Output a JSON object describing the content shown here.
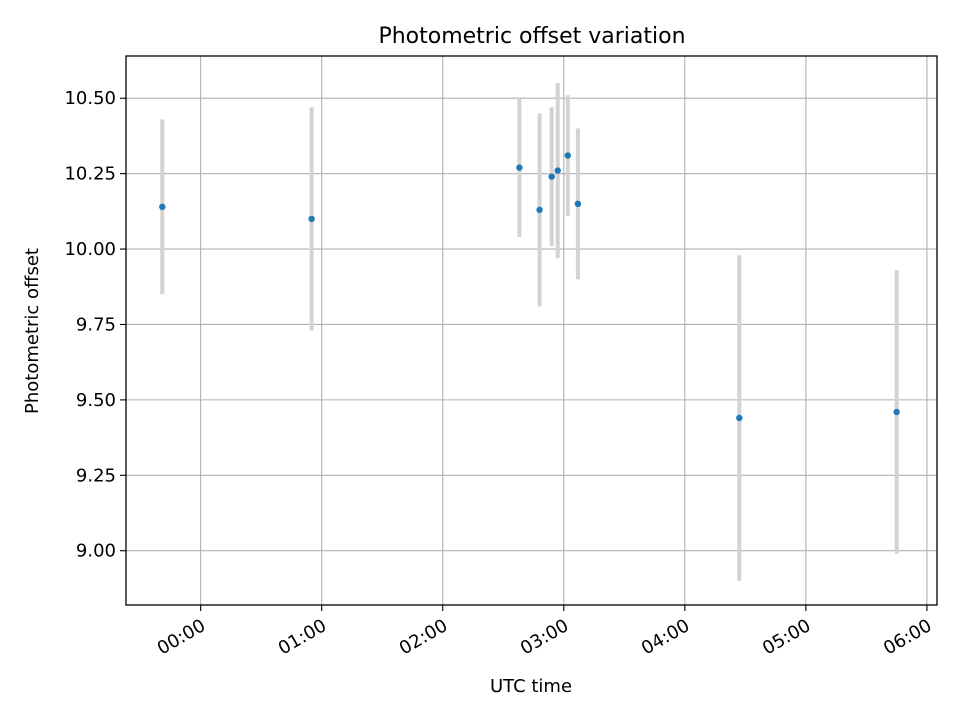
{
  "chart_data": {
    "type": "scatter",
    "title": "Photometric offset variation",
    "xlabel": "UTC time",
    "ylabel": "Photometric offset",
    "x_ticks": [
      "00:00",
      "01:00",
      "02:00",
      "03:00",
      "04:00",
      "05:00",
      "06:00"
    ],
    "y_ticks": [
      "9.00",
      "9.25",
      "9.50",
      "9.75",
      "10.00",
      "10.25",
      "10.50"
    ],
    "xlim": [
      "-00:37",
      "06:05"
    ],
    "ylim": [
      8.82,
      10.64
    ],
    "grid": true,
    "colors": {
      "point": "#1f77b4",
      "errorbar": "#d3d3d3",
      "grid": "#b0b0b0"
    },
    "points": [
      {
        "x": "-00:19",
        "y": 10.14,
        "err": 0.29
      },
      {
        "x": "00:55",
        "y": 10.1,
        "err": 0.37
      },
      {
        "x": "02:38",
        "y": 10.27,
        "err": 0.23
      },
      {
        "x": "02:48",
        "y": 10.13,
        "err": 0.32
      },
      {
        "x": "02:54",
        "y": 10.24,
        "err": 0.23
      },
      {
        "x": "02:57",
        "y": 10.26,
        "err": 0.29
      },
      {
        "x": "03:02",
        "y": 10.31,
        "err": 0.2
      },
      {
        "x": "03:07",
        "y": 10.15,
        "err": 0.25
      },
      {
        "x": "04:27",
        "y": 9.44,
        "err": 0.54
      },
      {
        "x": "05:45",
        "y": 9.46,
        "err": 0.47
      }
    ]
  }
}
